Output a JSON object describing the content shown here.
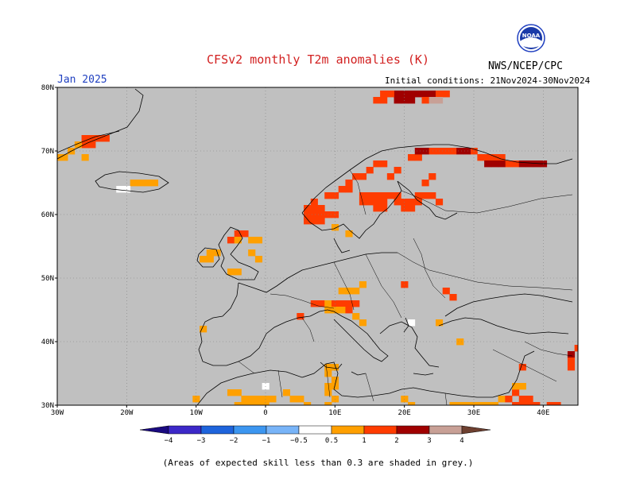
{
  "title": "CFSv2 monthly T2m anomalies (K)",
  "month": "Jan 2025",
  "initial_conditions": "Initial conditions: 21Nov2024-30Nov2024",
  "agency": "NWS/NCEP/CPC",
  "logo_text": "NOAA",
  "footnote": "(Areas of expected skill less than 0.3 are shaded in grey.)",
  "map": {
    "lon_range": [
      -30,
      45
    ],
    "lat_range": [
      30,
      80
    ],
    "background_color": "#c0c0c0",
    "lat_labels": [
      {
        "lat": 80,
        "label": "80N"
      },
      {
        "lat": 70,
        "label": "70N"
      },
      {
        "lat": 60,
        "label": "60N"
      },
      {
        "lat": 50,
        "label": "50N"
      },
      {
        "lat": 40,
        "label": "40N"
      },
      {
        "lat": 30,
        "label": "30N"
      }
    ],
    "lon_labels": [
      {
        "lon": -30,
        "label": "30W"
      },
      {
        "lon": -20,
        "label": "20W"
      },
      {
        "lon": -10,
        "label": "10W"
      },
      {
        "lon": 0,
        "label": "0"
      },
      {
        "lon": 10,
        "label": "10E"
      },
      {
        "lon": 20,
        "label": "20E"
      },
      {
        "lon": 30,
        "label": "30E"
      },
      {
        "lon": 40,
        "label": "40E"
      }
    ]
  },
  "colorbar": {
    "bins": [
      {
        "from": null,
        "to": -4,
        "color": "#1a0a80"
      },
      {
        "from": -4,
        "to": -3,
        "color": "#3c28c8"
      },
      {
        "from": -3,
        "to": -2,
        "color": "#1e64dc"
      },
      {
        "from": -2,
        "to": -1,
        "color": "#3c96f0"
      },
      {
        "from": -1,
        "to": -0.5,
        "color": "#78b4f8"
      },
      {
        "from": -0.5,
        "to": 0.5,
        "color": "#ffffff"
      },
      {
        "from": 0.5,
        "to": 1,
        "color": "#ffa000"
      },
      {
        "from": 1,
        "to": 2,
        "color": "#ff3c00"
      },
      {
        "from": 2,
        "to": 3,
        "color": "#a00000"
      },
      {
        "from": 3,
        "to": 4,
        "color": "#c8a096"
      },
      {
        "from": 4,
        "to": null,
        "color": "#6e4030"
      }
    ],
    "tick_labels": [
      "−4",
      "−3",
      "−2",
      "−1",
      "−0.5",
      "0.5",
      "1",
      "2",
      "3",
      "4"
    ]
  },
  "anomaly_cells": [
    {
      "lon": 19.0,
      "lat": 79.0,
      "value": 2.5
    },
    {
      "lon": 20.0,
      "lat": 79.0,
      "value": 2.5
    },
    {
      "lon": 21.0,
      "lat": 79.0,
      "value": 2.5
    },
    {
      "lon": 22.0,
      "lat": 79.0,
      "value": 2.5
    },
    {
      "lon": 23.0,
      "lat": 79.0,
      "value": 2.5
    },
    {
      "lon": 24.0,
      "lat": 79.0,
      "value": 2.5
    },
    {
      "lon": 17.0,
      "lat": 79.0,
      "value": 1.5
    },
    {
      "lon": 18.0,
      "lat": 79.0,
      "value": 1.5
    },
    {
      "lon": 25.0,
      "lat": 79.0,
      "value": 1.5
    },
    {
      "lon": 26.0,
      "lat": 79.0,
      "value": 1.5
    },
    {
      "lon": 16.0,
      "lat": 78.0,
      "value": 1.5
    },
    {
      "lon": 17.0,
      "lat": 78.0,
      "value": 1.5
    },
    {
      "lon": 19.0,
      "lat": 78.0,
      "value": 2.5
    },
    {
      "lon": 20.0,
      "lat": 78.0,
      "value": 2.5
    },
    {
      "lon": 21.0,
      "lat": 78.0,
      "value": 2.5
    },
    {
      "lon": 24.0,
      "lat": 78.0,
      "value": 3.5
    },
    {
      "lon": 25.0,
      "lat": 78.0,
      "value": 3.5
    },
    {
      "lon": 23.0,
      "lat": 78.0,
      "value": 1.5
    },
    {
      "lon": -26.0,
      "lat": 72.0,
      "value": 1.5
    },
    {
      "lon": -25.0,
      "lat": 72.0,
      "value": 1.5
    },
    {
      "lon": -24.0,
      "lat": 72.0,
      "value": 1.5
    },
    {
      "lon": -23.0,
      "lat": 72.0,
      "value": 1.5
    },
    {
      "lon": -26.0,
      "lat": 71.0,
      "value": 1.5
    },
    {
      "lon": -25.0,
      "lat": 71.0,
      "value": 1.5
    },
    {
      "lon": -27.0,
      "lat": 71.0,
      "value": 0.7
    },
    {
      "lon": -28.0,
      "lat": 70.0,
      "value": 0.7
    },
    {
      "lon": -30.0,
      "lat": 69.0,
      "value": 0.7
    },
    {
      "lon": -29.0,
      "lat": 69.0,
      "value": 0.7
    },
    {
      "lon": -26.0,
      "lat": 69.0,
      "value": 0.7
    },
    {
      "lon": -19.0,
      "lat": 65.0,
      "value": 0.7
    },
    {
      "lon": -18.0,
      "lat": 65.0,
      "value": 0.7
    },
    {
      "lon": -17.0,
      "lat": 65.0,
      "value": 0.7
    },
    {
      "lon": -16.0,
      "lat": 65.0,
      "value": 0.7
    },
    {
      "lon": -20.0,
      "lat": 64.0,
      "value": 0.0
    },
    {
      "lon": -21.0,
      "lat": 64.0,
      "value": 0.0
    },
    {
      "lon": 7.0,
      "lat": 62.0,
      "value": 1.5
    },
    {
      "lon": 6.0,
      "lat": 61.0,
      "value": 1.5
    },
    {
      "lon": 7.0,
      "lat": 61.0,
      "value": 1.5
    },
    {
      "lon": 8.0,
      "lat": 61.0,
      "value": 1.5
    },
    {
      "lon": 6.0,
      "lat": 60.0,
      "value": 1.5
    },
    {
      "lon": 7.0,
      "lat": 60.0,
      "value": 1.5
    },
    {
      "lon": 8.0,
      "lat": 60.0,
      "value": 1.5
    },
    {
      "lon": 9.0,
      "lat": 60.0,
      "value": 1.5
    },
    {
      "lon": 6.0,
      "lat": 59.0,
      "value": 1.5
    },
    {
      "lon": 7.0,
      "lat": 59.0,
      "value": 1.5
    },
    {
      "lon": 8.0,
      "lat": 59.0,
      "value": 1.5
    },
    {
      "lon": 10.0,
      "lat": 60.0,
      "value": 1.5
    },
    {
      "lon": 9.0,
      "lat": 63.0,
      "value": 1.5
    },
    {
      "lon": 10.0,
      "lat": 63.0,
      "value": 1.5
    },
    {
      "lon": 11.0,
      "lat": 64.0,
      "value": 1.5
    },
    {
      "lon": 12.0,
      "lat": 64.0,
      "value": 1.5
    },
    {
      "lon": 12.0,
      "lat": 65.0,
      "value": 1.5
    },
    {
      "lon": 13.0,
      "lat": 66.0,
      "value": 1.5
    },
    {
      "lon": 14.0,
      "lat": 66.0,
      "value": 1.5
    },
    {
      "lon": 15.0,
      "lat": 67.0,
      "value": 1.5
    },
    {
      "lon": 16.0,
      "lat": 68.0,
      "value": 1.5
    },
    {
      "lon": 17.0,
      "lat": 68.0,
      "value": 1.5
    },
    {
      "lon": 14.0,
      "lat": 63.0,
      "value": 1.5
    },
    {
      "lon": 15.0,
      "lat": 63.0,
      "value": 1.5
    },
    {
      "lon": 16.0,
      "lat": 63.0,
      "value": 1.5
    },
    {
      "lon": 17.0,
      "lat": 63.0,
      "value": 1.5
    },
    {
      "lon": 18.0,
      "lat": 63.0,
      "value": 1.5
    },
    {
      "lon": 19.0,
      "lat": 63.0,
      "value": 1.5
    },
    {
      "lon": 14.0,
      "lat": 62.0,
      "value": 1.5
    },
    {
      "lon": 15.0,
      "lat": 62.0,
      "value": 1.5
    },
    {
      "lon": 16.0,
      "lat": 62.0,
      "value": 1.5
    },
    {
      "lon": 17.0,
      "lat": 62.0,
      "value": 1.5
    },
    {
      "lon": 16.0,
      "lat": 61.0,
      "value": 1.5
    },
    {
      "lon": 17.0,
      "lat": 61.0,
      "value": 1.5
    },
    {
      "lon": 19.0,
      "lat": 62.0,
      "value": 1.5
    },
    {
      "lon": 20.0,
      "lat": 62.0,
      "value": 1.5
    },
    {
      "lon": 21.0,
      "lat": 62.0,
      "value": 1.5
    },
    {
      "lon": 22.0,
      "lat": 62.0,
      "value": 1.5
    },
    {
      "lon": 20.0,
      "lat": 61.0,
      "value": 1.5
    },
    {
      "lon": 21.0,
      "lat": 61.0,
      "value": 1.5
    },
    {
      "lon": 22.0,
      "lat": 63.0,
      "value": 1.5
    },
    {
      "lon": 23.0,
      "lat": 63.0,
      "value": 1.5
    },
    {
      "lon": 24.0,
      "lat": 63.0,
      "value": 1.5
    },
    {
      "lon": 25.0,
      "lat": 62.0,
      "value": 1.5
    },
    {
      "lon": 18.0,
      "lat": 66.0,
      "value": 1.5
    },
    {
      "lon": 19.0,
      "lat": 67.0,
      "value": 1.5
    },
    {
      "lon": 23.0,
      "lat": 65.0,
      "value": 1.5
    },
    {
      "lon": 24.0,
      "lat": 66.0,
      "value": 1.5
    },
    {
      "lon": 21.0,
      "lat": 69.0,
      "value": 1.5
    },
    {
      "lon": 22.0,
      "lat": 69.0,
      "value": 1.5
    },
    {
      "lon": 24.0,
      "lat": 70.0,
      "value": 1.5
    },
    {
      "lon": 25.0,
      "lat": 70.0,
      "value": 1.5
    },
    {
      "lon": 26.0,
      "lat": 70.0,
      "value": 1.5
    },
    {
      "lon": 27.0,
      "lat": 70.0,
      "value": 1.5
    },
    {
      "lon": 30.0,
      "lat": 70.0,
      "value": 1.5
    },
    {
      "lon": 31.0,
      "lat": 69.0,
      "value": 1.5
    },
    {
      "lon": 32.0,
      "lat": 69.0,
      "value": 1.5
    },
    {
      "lon": 33.0,
      "lat": 69.0,
      "value": 1.5
    },
    {
      "lon": 34.0,
      "lat": 69.0,
      "value": 1.5
    },
    {
      "lon": 35.0,
      "lat": 68.0,
      "value": 1.5
    },
    {
      "lon": 36.0,
      "lat": 68.0,
      "value": 1.5
    },
    {
      "lon": 37.0,
      "lat": 68.0,
      "value": 2.5
    },
    {
      "lon": 38.0,
      "lat": 68.0,
      "value": 2.5
    },
    {
      "lon": 39.0,
      "lat": 68.0,
      "value": 2.5
    },
    {
      "lon": 40.0,
      "lat": 68.0,
      "value": 2.5
    },
    {
      "lon": 33.0,
      "lat": 68.0,
      "value": 2.5
    },
    {
      "lon": 34.0,
      "lat": 68.0,
      "value": 2.5
    },
    {
      "lon": 32.0,
      "lat": 68.0,
      "value": 2.5
    },
    {
      "lon": 28.0,
      "lat": 70.0,
      "value": 2.5
    },
    {
      "lon": 29.0,
      "lat": 70.0,
      "value": 2.5
    },
    {
      "lon": 22.0,
      "lat": 70.0,
      "value": 2.5
    },
    {
      "lon": 23.0,
      "lat": 70.0,
      "value": 2.5
    },
    {
      "lon": 10.0,
      "lat": 58.0,
      "value": 0.7
    },
    {
      "lon": 12.0,
      "lat": 57.0,
      "value": 0.7
    },
    {
      "lon": -4.0,
      "lat": 57.0,
      "value": 1.5
    },
    {
      "lon": -3.0,
      "lat": 57.0,
      "value": 1.5
    },
    {
      "lon": -5.0,
      "lat": 56.0,
      "value": 1.5
    },
    {
      "lon": -4.0,
      "lat": 56.0,
      "value": 0.7
    },
    {
      "lon": -2.0,
      "lat": 56.0,
      "value": 0.7
    },
    {
      "lon": -1.0,
      "lat": 56.0,
      "value": 0.7
    },
    {
      "lon": -9.0,
      "lat": 53.0,
      "value": 0.7
    },
    {
      "lon": -8.0,
      "lat": 53.0,
      "value": 0.7
    },
    {
      "lon": -7.0,
      "lat": 54.0,
      "value": 0.7
    },
    {
      "lon": -8.0,
      "lat": 54.0,
      "value": 0.7
    },
    {
      "lon": -2.0,
      "lat": 54.0,
      "value": 0.7
    },
    {
      "lon": -1.0,
      "lat": 53.0,
      "value": 0.7
    },
    {
      "lon": -5.0,
      "lat": 51.0,
      "value": 0.7
    },
    {
      "lon": -4.0,
      "lat": 51.0,
      "value": 0.7
    },
    {
      "lon": 11.0,
      "lat": 48.0,
      "value": 0.7
    },
    {
      "lon": 12.0,
      "lat": 48.0,
      "value": 0.7
    },
    {
      "lon": 13.0,
      "lat": 48.0,
      "value": 0.7
    },
    {
      "lon": 14.0,
      "lat": 49.0,
      "value": 0.7
    },
    {
      "lon": 8.0,
      "lat": 46.0,
      "value": 1.5
    },
    {
      "lon": 9.0,
      "lat": 46.0,
      "value": 0.7
    },
    {
      "lon": 10.0,
      "lat": 46.0,
      "value": 1.5
    },
    {
      "lon": 11.0,
      "lat": 46.0,
      "value": 1.5
    },
    {
      "lon": 12.0,
      "lat": 46.0,
      "value": 1.5
    },
    {
      "lon": 13.0,
      "lat": 46.0,
      "value": 1.5
    },
    {
      "lon": 9.0,
      "lat": 45.0,
      "value": 0.7
    },
    {
      "lon": 10.0,
      "lat": 45.0,
      "value": 0.7
    },
    {
      "lon": 11.0,
      "lat": 45.0,
      "value": 0.7
    },
    {
      "lon": 12.0,
      "lat": 45.0,
      "value": 1.5
    },
    {
      "lon": 7.0,
      "lat": 46.0,
      "value": 1.5
    },
    {
      "lon": 5.0,
      "lat": 44.0,
      "value": 1.5
    },
    {
      "lon": 13.0,
      "lat": 44.0,
      "value": 0.7
    },
    {
      "lon": 14.0,
      "lat": 43.0,
      "value": 0.7
    },
    {
      "lon": 20.0,
      "lat": 49.0,
      "value": 1.5
    },
    {
      "lon": 26.0,
      "lat": 48.0,
      "value": 1.5
    },
    {
      "lon": 27.0,
      "lat": 47.0,
      "value": 1.5
    },
    {
      "lon": 25.0,
      "lat": 43.0,
      "value": 0.7
    },
    {
      "lon": 21.0,
      "lat": 43.0,
      "value": 0.0
    },
    {
      "lon": -9.0,
      "lat": 42.0,
      "value": 0.7
    },
    {
      "lon": 28.0,
      "lat": 40.0,
      "value": 0.7
    },
    {
      "lon": 44.0,
      "lat": 38.0,
      "value": 2.5
    },
    {
      "lon": 44.0,
      "lat": 37.0,
      "value": 1.5
    },
    {
      "lon": 44.0,
      "lat": 36.0,
      "value": 1.5
    },
    {
      "lon": 45.0,
      "lat": 39.0,
      "value": 1.5
    },
    {
      "lon": 37.0,
      "lat": 36.0,
      "value": 1.5
    },
    {
      "lon": 9.0,
      "lat": 36.0,
      "value": 0.7
    },
    {
      "lon": 10.0,
      "lat": 36.0,
      "value": 0.7
    },
    {
      "lon": 9.0,
      "lat": 35.0,
      "value": 0.7
    },
    {
      "lon": 10.0,
      "lat": 34.0,
      "value": 0.7
    },
    {
      "lon": 9.0,
      "lat": 33.0,
      "value": 0.7
    },
    {
      "lon": 10.0,
      "lat": 33.0,
      "value": 0.7
    },
    {
      "lon": 9.0,
      "lat": 32.0,
      "value": 0.7
    },
    {
      "lon": 10.0,
      "lat": 31.0,
      "value": 0.7
    },
    {
      "lon": 9.0,
      "lat": 30.0,
      "value": 0.7
    },
    {
      "lon": -5.0,
      "lat": 32.0,
      "value": 0.7
    },
    {
      "lon": -4.0,
      "lat": 32.0,
      "value": 0.7
    },
    {
      "lon": -3.0,
      "lat": 31.0,
      "value": 0.7
    },
    {
      "lon": -2.0,
      "lat": 31.0,
      "value": 0.7
    },
    {
      "lon": -1.0,
      "lat": 31.0,
      "value": 0.7
    },
    {
      "lon": 0.0,
      "lat": 31.0,
      "value": 0.7
    },
    {
      "lon": 1.0,
      "lat": 31.0,
      "value": 0.7
    },
    {
      "lon": -4.0,
      "lat": 30.0,
      "value": 0.7
    },
    {
      "lon": -3.0,
      "lat": 30.0,
      "value": 0.7
    },
    {
      "lon": -2.0,
      "lat": 30.0,
      "value": 0.7
    },
    {
      "lon": -1.0,
      "lat": 30.0,
      "value": 0.7
    },
    {
      "lon": 0.0,
      "lat": 30.0,
      "value": 0.7
    },
    {
      "lon": -10.0,
      "lat": 31.0,
      "value": 0.7
    },
    {
      "lon": 0.0,
      "lat": 33.0,
      "value": 0.0
    },
    {
      "lon": 3.0,
      "lat": 32.0,
      "value": 0.7
    },
    {
      "lon": 4.0,
      "lat": 31.0,
      "value": 0.7
    },
    {
      "lon": 5.0,
      "lat": 31.0,
      "value": 0.7
    },
    {
      "lon": 6.0,
      "lat": 30.0,
      "value": 0.7
    },
    {
      "lon": 20.0,
      "lat": 31.0,
      "value": 0.7
    },
    {
      "lon": 21.0,
      "lat": 30.0,
      "value": 0.7
    },
    {
      "lon": 27.0,
      "lat": 30.0,
      "value": 0.7
    },
    {
      "lon": 28.0,
      "lat": 30.0,
      "value": 0.7
    },
    {
      "lon": 29.0,
      "lat": 30.0,
      "value": 0.7
    },
    {
      "lon": 30.0,
      "lat": 30.0,
      "value": 0.7
    },
    {
      "lon": 31.0,
      "lat": 30.0,
      "value": 0.7
    },
    {
      "lon": 32.0,
      "lat": 30.0,
      "value": 0.7
    },
    {
      "lon": 33.0,
      "lat": 30.0,
      "value": 0.7
    },
    {
      "lon": 34.0,
      "lat": 31.0,
      "value": 0.7
    },
    {
      "lon": 35.0,
      "lat": 31.0,
      "value": 1.5
    },
    {
      "lon": 36.0,
      "lat": 32.0,
      "value": 1.5
    },
    {
      "lon": 37.0,
      "lat": 31.0,
      "value": 1.5
    },
    {
      "lon": 38.0,
      "lat": 31.0,
      "value": 1.5
    },
    {
      "lon": 36.0,
      "lat": 30.0,
      "value": 1.5
    },
    {
      "lon": 37.0,
      "lat": 30.0,
      "value": 1.5
    },
    {
      "lon": 38.0,
      "lat": 30.0,
      "value": 1.5
    },
    {
      "lon": 39.0,
      "lat": 30.0,
      "value": 1.5
    },
    {
      "lon": 41.0,
      "lat": 30.0,
      "value": 1.5
    },
    {
      "lon": 42.0,
      "lat": 30.0,
      "value": 1.5
    },
    {
      "lon": 36.0,
      "lat": 33.0,
      "value": 0.7
    },
    {
      "lon": 37.0,
      "lat": 33.0,
      "value": 0.7
    }
  ]
}
